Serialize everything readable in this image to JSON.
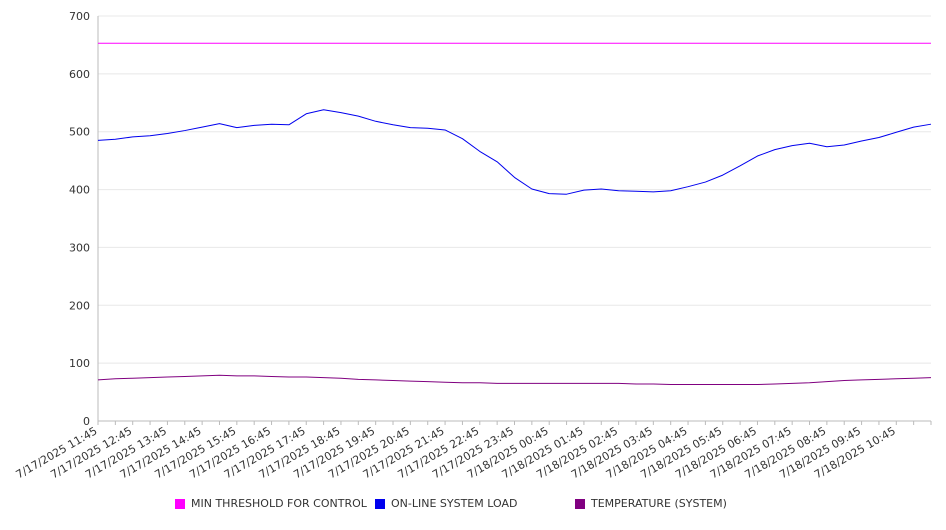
{
  "chart_data": {
    "type": "line",
    "title": "",
    "xlabel": "",
    "ylabel": "",
    "ylim": [
      0,
      700
    ],
    "yticks": [
      0,
      100,
      200,
      300,
      400,
      500,
      600,
      700
    ],
    "grid": true,
    "legend_position": "bottom",
    "categories": [
      "7/17/2025 11:45",
      "7/17/2025 12:45",
      "7/17/2025 13:45",
      "7/17/2025 14:45",
      "7/17/2025 15:45",
      "7/17/2025 16:45",
      "7/17/2025 17:45",
      "7/17/2025 18:45",
      "7/17/2025 19:45",
      "7/17/2025 20:45",
      "7/17/2025 21:45",
      "7/17/2025 22:45",
      "7/17/2025 23:45",
      "7/18/2025 00:45",
      "7/18/2025 01:45",
      "7/18/2025 02:45",
      "7/18/2025 03:45",
      "7/18/2025 04:45",
      "7/18/2025 05:45",
      "7/18/2025 06:45",
      "7/18/2025 07:45",
      "7/18/2025 08:45",
      "7/18/2025 09:45",
      "7/18/2025 10:45"
    ],
    "x": [
      "7/17/2025 11:45",
      "7/17/2025 12:15",
      "7/17/2025 12:45",
      "7/17/2025 13:15",
      "7/17/2025 13:45",
      "7/17/2025 14:15",
      "7/17/2025 14:45",
      "7/17/2025 15:15",
      "7/17/2025 15:45",
      "7/17/2025 16:15",
      "7/17/2025 16:45",
      "7/17/2025 17:15",
      "7/17/2025 17:45",
      "7/17/2025 18:15",
      "7/17/2025 18:45",
      "7/17/2025 19:15",
      "7/17/2025 19:45",
      "7/17/2025 20:15",
      "7/17/2025 20:45",
      "7/17/2025 21:15",
      "7/17/2025 21:45",
      "7/17/2025 22:15",
      "7/17/2025 22:45",
      "7/17/2025 23:15",
      "7/17/2025 23:45",
      "7/18/2025 00:15",
      "7/18/2025 00:45",
      "7/18/2025 01:15",
      "7/18/2025 01:45",
      "7/18/2025 02:15",
      "7/18/2025 02:45",
      "7/18/2025 03:15",
      "7/18/2025 03:45",
      "7/18/2025 04:15",
      "7/18/2025 04:45",
      "7/18/2025 05:15",
      "7/18/2025 05:45",
      "7/18/2025 06:15",
      "7/18/2025 06:45",
      "7/18/2025 07:15",
      "7/18/2025 07:45",
      "7/18/2025 08:15",
      "7/18/2025 08:45",
      "7/18/2025 09:15",
      "7/18/2025 09:45",
      "7/18/2025 10:15",
      "7/18/2025 10:45",
      "7/18/2025 11:15",
      "7/18/2025 11:45"
    ],
    "series": [
      {
        "name": "MIN THRESHOLD FOR CONTROL",
        "color": "#ff00ff",
        "values": [
          653,
          653,
          653,
          653,
          653,
          653,
          653,
          653,
          653,
          653,
          653,
          653,
          653,
          653,
          653,
          653,
          653,
          653,
          653,
          653,
          653,
          653,
          653,
          653,
          653,
          653,
          653,
          653,
          653,
          653,
          653,
          653,
          653,
          653,
          653,
          653,
          653,
          653,
          653,
          653,
          653,
          653,
          653,
          653,
          653,
          653,
          653,
          653,
          653
        ]
      },
      {
        "name": "ON-LINE SYSTEM LOAD",
        "color": "#0000ee",
        "values": [
          485,
          487,
          491,
          493,
          497,
          502,
          508,
          514,
          507,
          511,
          513,
          512,
          531,
          538,
          533,
          527,
          518,
          512,
          507,
          506,
          503,
          488,
          466,
          448,
          421,
          401,
          393,
          392,
          399,
          401,
          398,
          397,
          396,
          398,
          405,
          413,
          425,
          441,
          458,
          469,
          476,
          480,
          474,
          477,
          484,
          490,
          499,
          508,
          513
        ]
      },
      {
        "name": "TEMPERATURE (SYSTEM)",
        "color": "#800080",
        "values": [
          71,
          73,
          74,
          75,
          76,
          77,
          78,
          79,
          78,
          78,
          77,
          76,
          76,
          75,
          74,
          72,
          71,
          70,
          69,
          68,
          67,
          66,
          66,
          65,
          65,
          65,
          65,
          65,
          65,
          65,
          65,
          64,
          64,
          63,
          63,
          63,
          63,
          63,
          63,
          64,
          65,
          66,
          68,
          70,
          71,
          72,
          73,
          74,
          75
        ]
      }
    ]
  }
}
